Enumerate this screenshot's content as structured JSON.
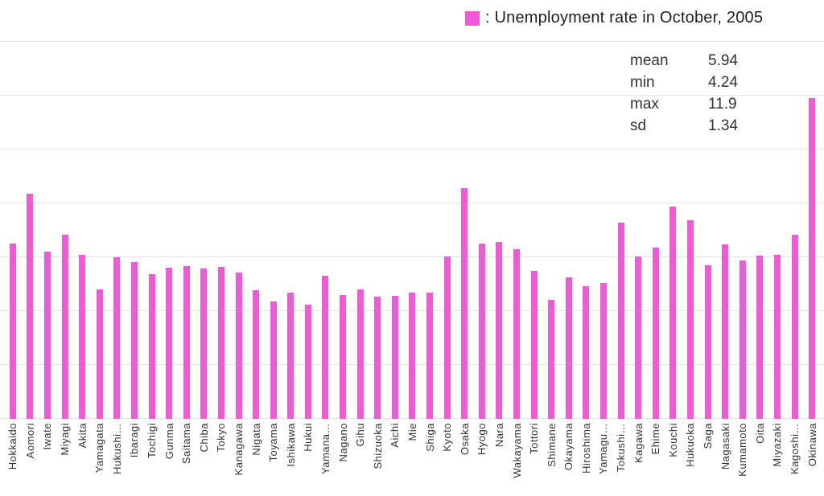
{
  "legend": {
    "label": ": Unemployment rate in October, 2005",
    "swatch_color": "#F05AD7"
  },
  "stats": {
    "rows": [
      {
        "label": "mean",
        "value": "5.94"
      },
      {
        "label": "min",
        "value": "4.24"
      },
      {
        "label": "max",
        "value": "11.9"
      },
      {
        "label": "sd",
        "value": "1.34"
      }
    ]
  },
  "chart_data": {
    "type": "bar",
    "title": "Unemployment rate in October, 2005",
    "xlabel": "",
    "ylabel": "",
    "ylim": [
      0,
      14
    ],
    "grid": true,
    "grid_step": 2,
    "legend_position": "top-right",
    "bar_color": "#F05AD7",
    "gridline_color": "#e3e3e3",
    "summary_stats": {
      "mean": 5.94,
      "min": 4.24,
      "max": 11.9,
      "sd": 1.34
    },
    "categories": [
      "Hokkaido",
      "Aomori",
      "Iwate",
      "Miyagi",
      "Akita",
      "Yamagata",
      "Hukushi…",
      "Ibaragi",
      "Tochigi",
      "Gunma",
      "Saitama",
      "Chiba",
      "Tokyo",
      "Kanagawa",
      "Nigata",
      "Toyama",
      "Ishikawa",
      "Hukui",
      "Yamana…",
      "Nagano",
      "Gihu",
      "Shizuoka",
      "Aichi",
      "Mie",
      "Shiga",
      "Kyoto",
      "Osaka",
      "Hyogo",
      "Nara",
      "Wakayama",
      "Tottori",
      "Shimane",
      "Okayama",
      "Hiroshima",
      "Yamagu…",
      "Tokushi…",
      "Kagawa",
      "Ehime",
      "Kouchi",
      "Hukuoka",
      "Saga",
      "Nagasaki",
      "Kumamoto",
      "Oita",
      "Miyazaki",
      "Kagoshi…",
      "Okinawa"
    ],
    "values": [
      6.5,
      8.37,
      6.2,
      6.85,
      6.1,
      4.8,
      6.0,
      5.81,
      5.36,
      5.62,
      5.67,
      5.57,
      5.65,
      5.44,
      4.79,
      4.35,
      4.7,
      4.24,
      5.3,
      4.59,
      4.81,
      4.54,
      4.57,
      4.7,
      4.7,
      6.02,
      8.58,
      6.51,
      6.58,
      6.31,
      5.5,
      4.42,
      5.24,
      4.92,
      5.04,
      7.28,
      6.03,
      6.35,
      7.88,
      7.36,
      5.69,
      6.48,
      5.89,
      6.07,
      6.1,
      6.85,
      11.9
    ]
  }
}
